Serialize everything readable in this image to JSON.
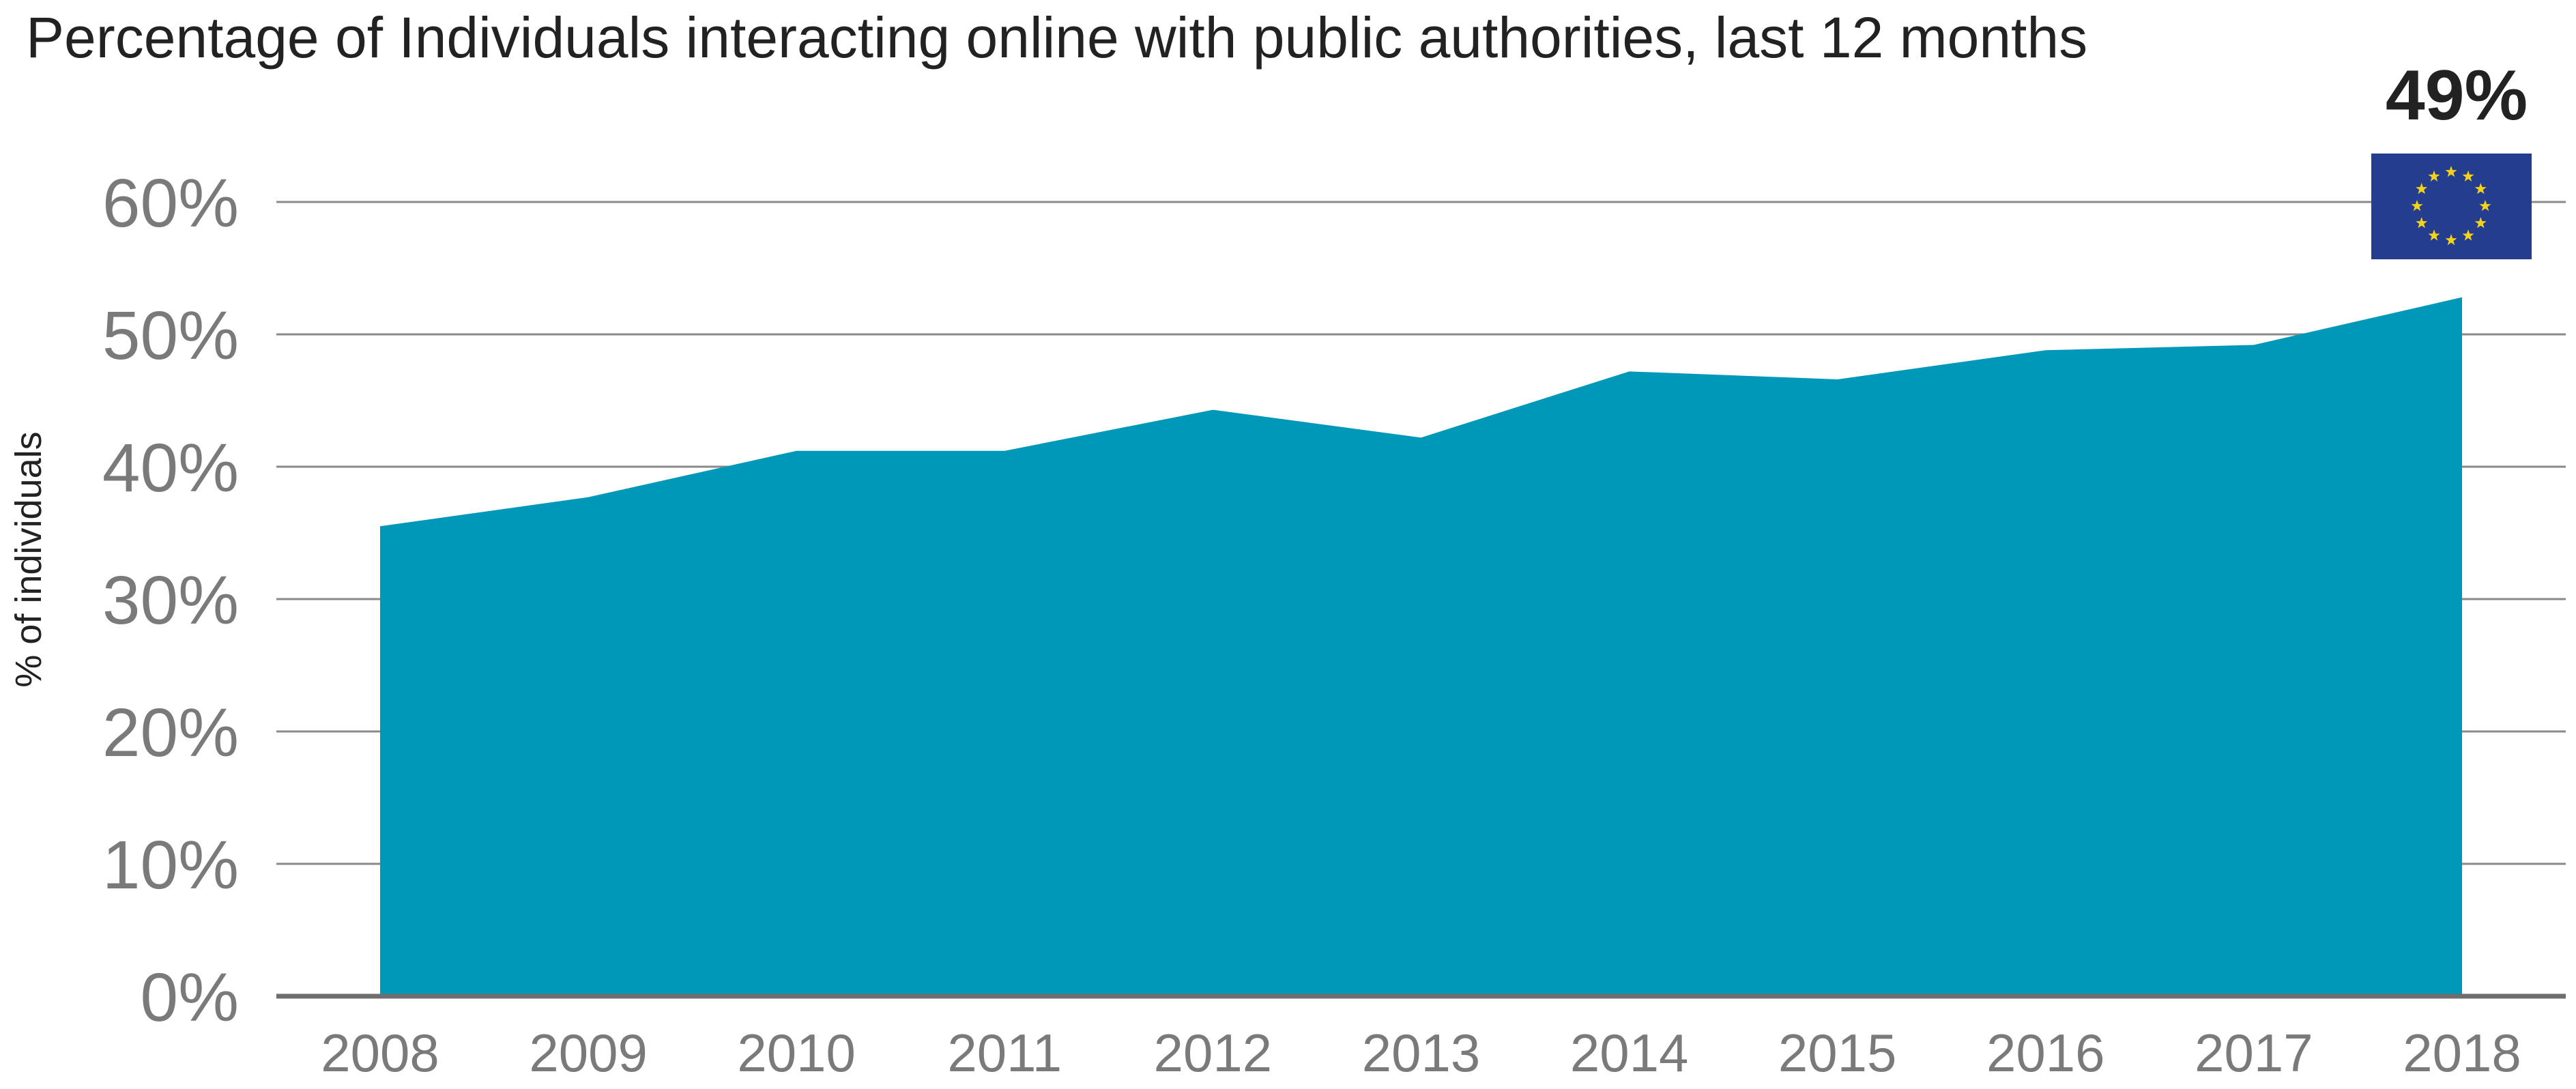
{
  "chart_data": {
    "type": "area",
    "title": "Percentage of Individuals interacting online with public authorities, last 12 months",
    "ylabel": "% of individuals",
    "xlabel": "",
    "categories": [
      "2008",
      "2009",
      "2010",
      "2011",
      "2012",
      "2013",
      "2014",
      "2015",
      "2016",
      "2017",
      "2018"
    ],
    "series": [
      {
        "values": [
          35.5,
          37.7,
          41.2,
          41.2,
          44.3,
          42.2,
          47.2,
          46.6,
          48.8,
          49.2,
          52.8
        ],
        "color": "#0098b8"
      }
    ],
    "ylim": [
      0,
      60
    ],
    "yticks": [
      0,
      10,
      20,
      30,
      40,
      50,
      60
    ],
    "ytick_labels": [
      "0%",
      "10%",
      "20%",
      "30%",
      "40%",
      "50%",
      "60%"
    ],
    "grid": true,
    "callout": {
      "label": "49%",
      "icon": "eu-flag-icon"
    }
  },
  "colors": {
    "area": "#0098b8",
    "gridline": "#8a8a8a",
    "baseline": "#6e6e6e",
    "flag_blue": "#253d8f",
    "flag_star": "#f3d21a"
  }
}
